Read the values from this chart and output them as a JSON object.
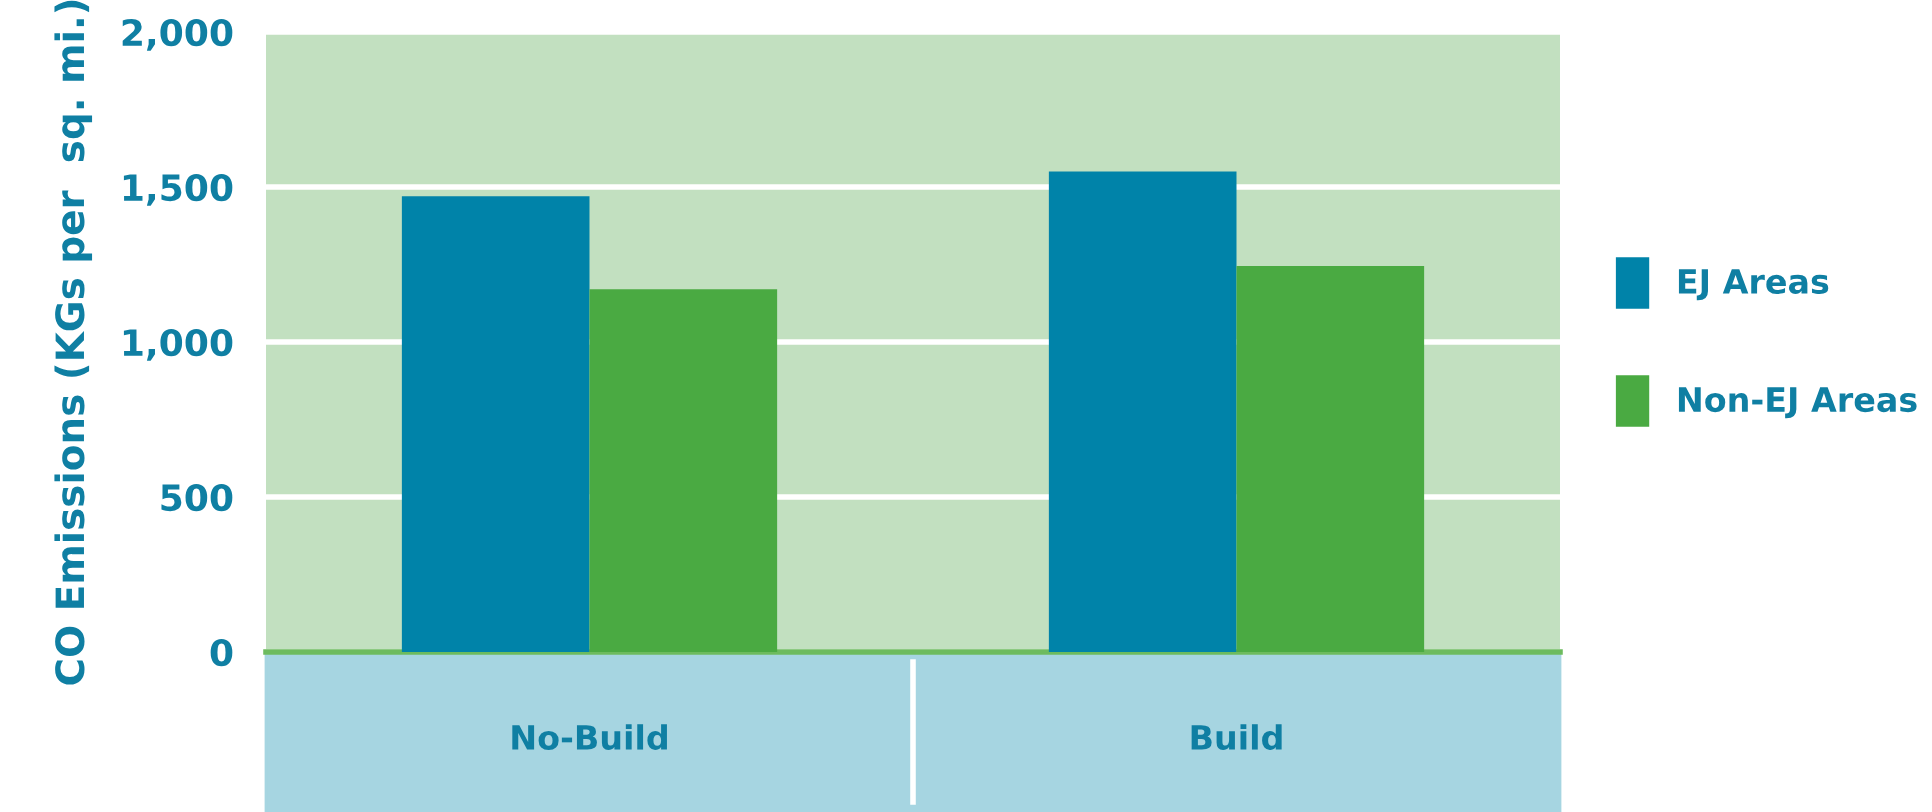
{
  "chart_data": {
    "type": "bar",
    "ylabel": "CO Emissions (KGs per  sq. mi.)",
    "categories": [
      "No-Build",
      "Build"
    ],
    "series": [
      {
        "name": "EJ Areas",
        "color": "#0083a9",
        "values": [
          1470,
          1550
        ]
      },
      {
        "name": "Non-EJ Areas",
        "color": "#4aaa42",
        "values": [
          1170,
          1245
        ]
      }
    ],
    "ylim": [
      0,
      2000
    ],
    "yticks": [
      0,
      500,
      {
        "value": 1000,
        "label": "1,000"
      },
      {
        "value": 1500,
        "label": "1,500"
      },
      {
        "value": 2000,
        "label": "2,000"
      }
    ],
    "grid": "y",
    "legend": "right"
  }
}
